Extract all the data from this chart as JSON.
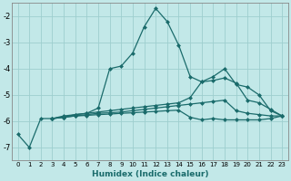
{
  "xlabel": "Humidex (Indice chaleur)",
  "xlim": [
    -0.5,
    23.5
  ],
  "ylim": [
    -7.5,
    -1.5
  ],
  "bg_color": "#c2e8e8",
  "grid_color": "#9ecece",
  "line_color": "#1a6b6b",
  "series": [
    [
      0,
      -6.5,
      1,
      -7.0,
      2,
      -5.9,
      3,
      -5.9,
      4,
      -5.8,
      5,
      -5.75,
      6,
      -5.7,
      7,
      -5.5,
      8,
      -4.0,
      9,
      -3.9,
      10,
      -3.4,
      11,
      -2.4,
      12,
      -1.7,
      13,
      -2.2,
      14,
      -3.1,
      15,
      -4.3,
      16,
      -4.5,
      17,
      -4.3,
      18,
      -4.0,
      19,
      -4.6,
      20,
      -4.7,
      21,
      -5.0,
      22,
      -5.6,
      23,
      -5.8
    ],
    [
      3,
      -5.9,
      4,
      -5.85,
      5,
      -5.75,
      6,
      -5.7,
      7,
      -5.65,
      8,
      -5.6,
      9,
      -5.55,
      10,
      -5.5,
      11,
      -5.45,
      12,
      -5.4,
      13,
      -5.35,
      14,
      -5.3,
      15,
      -5.1,
      16,
      -4.5,
      17,
      -4.45,
      18,
      -4.35,
      19,
      -4.55,
      20,
      -5.2,
      21,
      -5.3,
      22,
      -5.55,
      23,
      -5.8
    ],
    [
      3,
      -5.9,
      4,
      -5.85,
      5,
      -5.8,
      6,
      -5.75,
      7,
      -5.7,
      8,
      -5.68,
      9,
      -5.65,
      10,
      -5.6,
      11,
      -5.55,
      12,
      -5.5,
      13,
      -5.45,
      14,
      -5.4,
      15,
      -5.35,
      16,
      -5.3,
      17,
      -5.25,
      18,
      -5.2,
      19,
      -5.6,
      20,
      -5.7,
      21,
      -5.75,
      22,
      -5.8,
      23,
      -5.8
    ],
    [
      3,
      -5.9,
      4,
      -5.85,
      5,
      -5.8,
      6,
      -5.78,
      7,
      -5.75,
      8,
      -5.73,
      9,
      -5.7,
      10,
      -5.68,
      11,
      -5.65,
      12,
      -5.63,
      13,
      -5.6,
      14,
      -5.58,
      15,
      -5.85,
      16,
      -5.95,
      17,
      -5.9,
      18,
      -5.95,
      19,
      -5.95,
      20,
      -5.95,
      21,
      -5.95,
      22,
      -5.9,
      23,
      -5.8
    ]
  ],
  "xticks": [
    0,
    1,
    2,
    3,
    4,
    5,
    6,
    7,
    8,
    9,
    10,
    11,
    12,
    13,
    14,
    15,
    16,
    17,
    18,
    19,
    20,
    21,
    22,
    23
  ],
  "yticks": [
    -7,
    -6,
    -5,
    -4,
    -3,
    -2
  ],
  "markersize": 2.5,
  "linewidth": 0.9
}
